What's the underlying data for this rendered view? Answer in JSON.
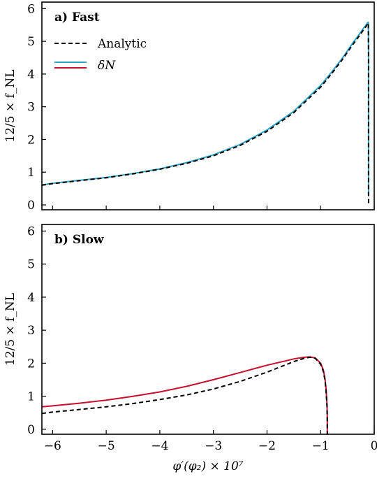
{
  "figure": {
    "xlabel": "φ′(φ₂) × 10⁷"
  },
  "legend": {
    "analytic_label": "Analytic",
    "deltaN_label": "δN"
  },
  "colors": {
    "analytic": "#000000",
    "fast_deltaN": "#2aa3c9",
    "slow_deltaN": "#c8102e"
  },
  "chart_data": [
    {
      "type": "line",
      "panel_label": "a) Fast",
      "ylabel": "12/5 × f_NL",
      "xlim": [
        -6.2,
        0
      ],
      "ylim": [
        -0.15,
        6.2
      ],
      "xticks": [
        -6,
        -5,
        -4,
        -3,
        -2,
        -1,
        0
      ],
      "yticks": [
        0,
        1,
        2,
        3,
        4,
        5,
        6
      ],
      "legend_position": "top-left",
      "series": [
        {
          "name": "Analytic",
          "style": "dashed",
          "x": [
            -6.2,
            -6.0,
            -5.5,
            -5.0,
            -4.5,
            -4.0,
            -3.5,
            -3.0,
            -2.5,
            -2.0,
            -1.5,
            -1.0,
            -0.8,
            -0.6,
            -0.4,
            -0.3,
            -0.2,
            -0.15,
            -0.12,
            -0.11,
            -0.105,
            -0.105
          ],
          "y": [
            0.6,
            0.65,
            0.74,
            0.83,
            0.95,
            1.09,
            1.27,
            1.5,
            1.82,
            2.25,
            2.82,
            3.6,
            4.0,
            4.43,
            4.9,
            5.12,
            5.35,
            5.46,
            5.55,
            5.56,
            4.5,
            0.05
          ]
        },
        {
          "name": "δN",
          "x": [
            -6.2,
            -6.0,
            -5.5,
            -5.0,
            -4.5,
            -4.0,
            -3.5,
            -3.0,
            -2.5,
            -2.0,
            -1.5,
            -1.0,
            -0.8,
            -0.6,
            -0.4,
            -0.3,
            -0.2,
            -0.15,
            -0.12,
            -0.11,
            -0.105,
            -0.105
          ],
          "y": [
            0.61,
            0.66,
            0.75,
            0.84,
            0.96,
            1.1,
            1.29,
            1.53,
            1.85,
            2.29,
            2.86,
            3.65,
            4.05,
            4.47,
            4.95,
            5.17,
            5.4,
            5.5,
            5.58,
            5.58,
            4.5,
            0.3
          ]
        }
      ]
    },
    {
      "type": "line",
      "panel_label": "b) Slow",
      "ylabel": "12/5 × f_NL",
      "xlim": [
        -6.2,
        0
      ],
      "ylim": [
        -0.15,
        6.2
      ],
      "xticks": [
        -6,
        -5,
        -4,
        -3,
        -2,
        -1,
        0
      ],
      "yticks": [
        0,
        1,
        2,
        3,
        4,
        5,
        6
      ],
      "series": [
        {
          "name": "Analytic",
          "style": "dashed",
          "x": [
            -6.2,
            -6.0,
            -5.5,
            -5.0,
            -4.5,
            -4.0,
            -3.5,
            -3.0,
            -2.5,
            -2.0,
            -1.5,
            -1.3,
            -1.2,
            -1.1,
            -1.0,
            -0.95,
            -0.92,
            -0.9,
            -0.88,
            -0.875,
            -0.875
          ],
          "y": [
            0.48,
            0.52,
            0.6,
            0.68,
            0.78,
            0.9,
            1.04,
            1.22,
            1.45,
            1.73,
            2.05,
            2.15,
            2.18,
            2.15,
            1.97,
            1.75,
            1.5,
            1.2,
            0.7,
            0.3,
            -0.15
          ]
        },
        {
          "name": "δN",
          "x": [
            -6.2,
            -6.0,
            -5.5,
            -5.0,
            -4.5,
            -4.0,
            -3.5,
            -3.0,
            -2.5,
            -2.0,
            -1.5,
            -1.3,
            -1.2,
            -1.1,
            -1.0,
            -0.95,
            -0.92,
            -0.9,
            -0.88,
            -0.875,
            -0.875
          ],
          "y": [
            0.68,
            0.71,
            0.79,
            0.88,
            1.0,
            1.13,
            1.3,
            1.5,
            1.72,
            1.94,
            2.13,
            2.18,
            2.19,
            2.16,
            2.0,
            1.8,
            1.55,
            1.25,
            0.75,
            0.35,
            -0.15
          ]
        }
      ]
    }
  ]
}
